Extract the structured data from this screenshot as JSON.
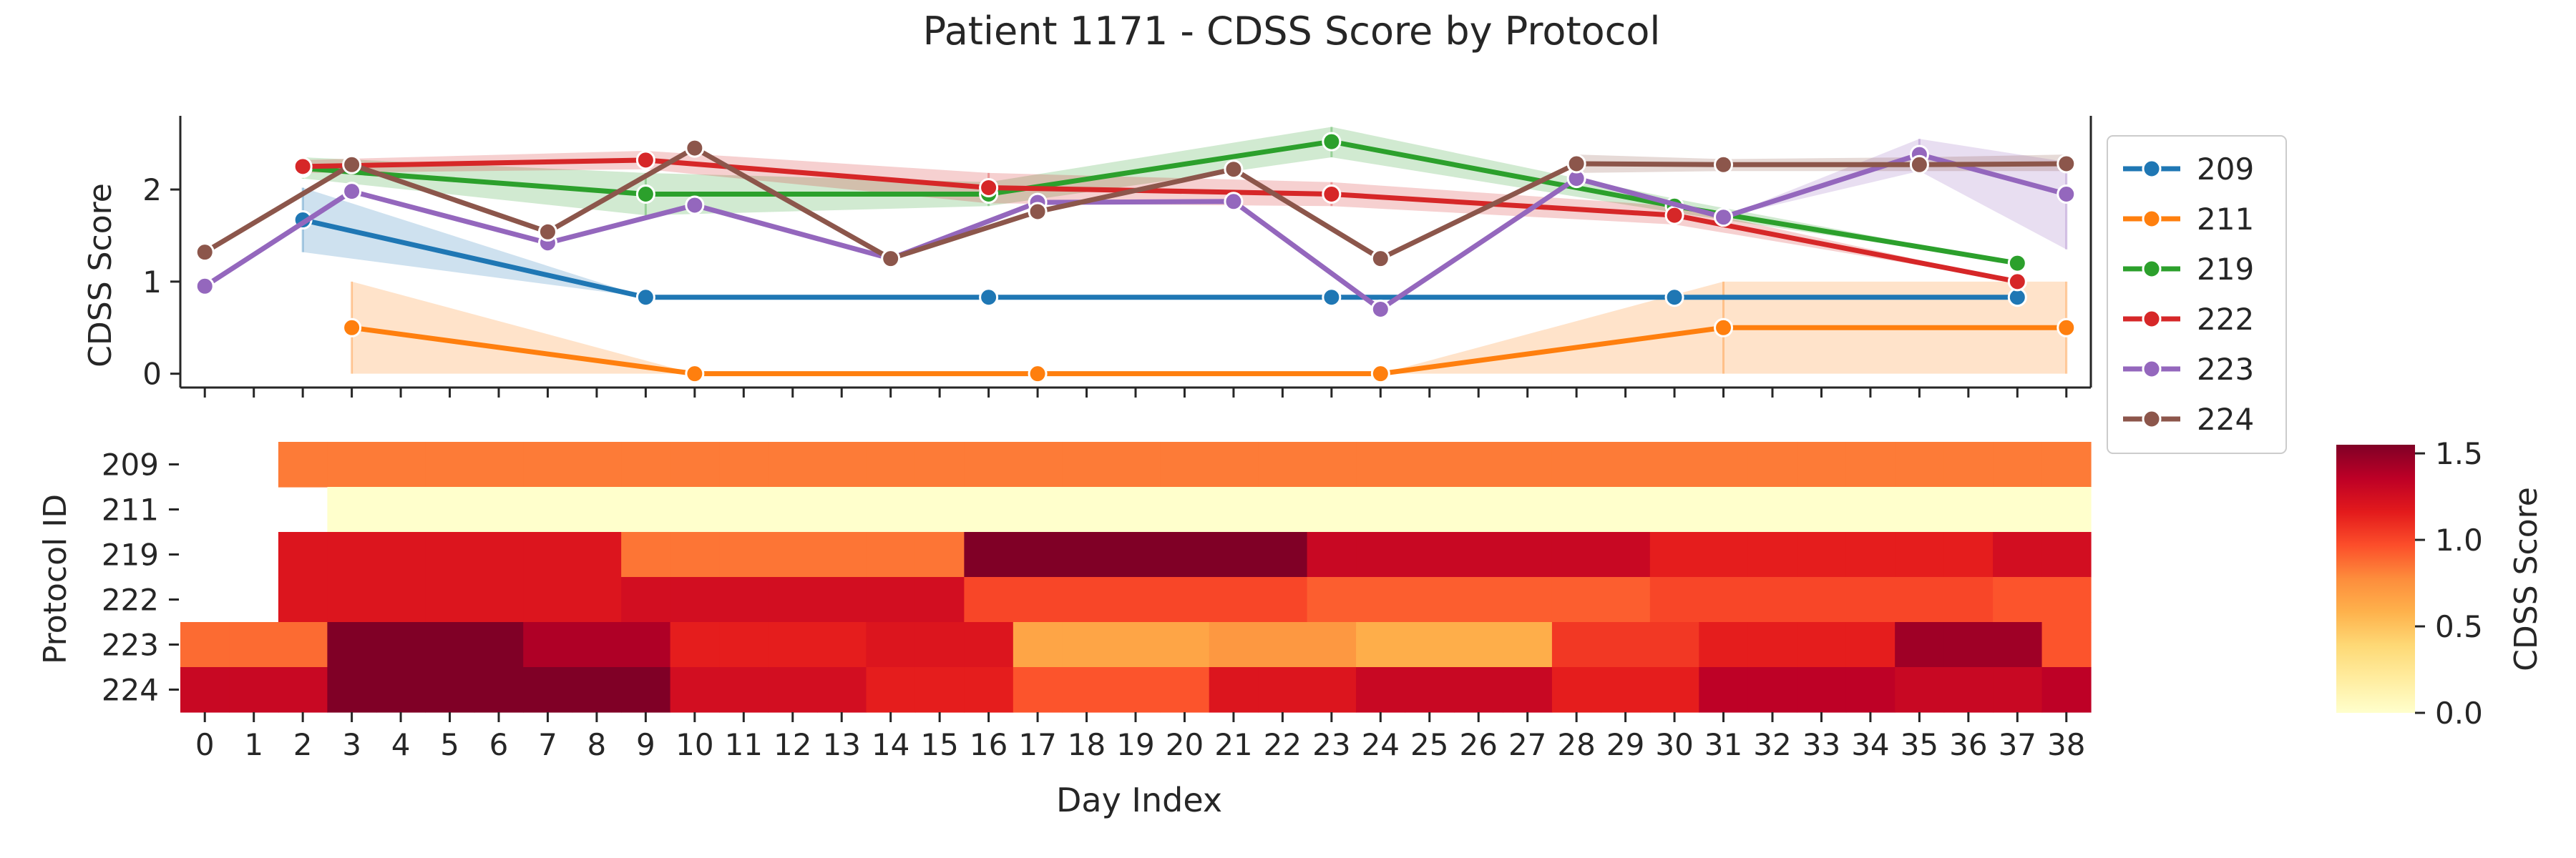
{
  "figure": {
    "title": "Patient 1171 - CDSS Score by Protocol"
  },
  "chart_data": [
    {
      "type": "line",
      "title": "Patient 1171 - CDSS Score by Protocol",
      "xlabel": "",
      "ylabel": "CDSS Score",
      "xlim": [
        -0.5,
        38.5
      ],
      "ylim": [
        -0.15,
        2.8
      ],
      "yticks": [
        0,
        1,
        2
      ],
      "legend_position": "right, outside plot",
      "grid": false,
      "series": [
        {
          "name": "209",
          "color": "#1f77b4",
          "points": [
            [
              2,
              1.67
            ],
            [
              9,
              0.83
            ],
            [
              16,
              0.83
            ],
            [
              23,
              0.83
            ],
            [
              30,
              0.83
            ],
            [
              37,
              0.83
            ]
          ],
          "band": [
            [
              2,
              1.32,
              2.02
            ],
            [
              9,
              0.83,
              0.83
            ],
            [
              16,
              0.83,
              0.83
            ],
            [
              23,
              0.83,
              0.83
            ],
            [
              30,
              0.83,
              0.83
            ],
            [
              37,
              0.83,
              0.83
            ]
          ]
        },
        {
          "name": "211",
          "color": "#ff7f0e",
          "points": [
            [
              3,
              0.5
            ],
            [
              10,
              0.0
            ],
            [
              17,
              0.0
            ],
            [
              24,
              0.0
            ],
            [
              31,
              0.5
            ],
            [
              38,
              0.5
            ]
          ],
          "band": [
            [
              3,
              0.0,
              1.0
            ],
            [
              10,
              0.0,
              0.0
            ],
            [
              17,
              0.0,
              0.0
            ],
            [
              24,
              0.0,
              0.0
            ],
            [
              31,
              0.0,
              1.0
            ],
            [
              38,
              0.0,
              1.0
            ]
          ]
        },
        {
          "name": "219",
          "color": "#2ca02c",
          "points": [
            [
              2,
              2.23
            ],
            [
              9,
              1.95
            ],
            [
              16,
              1.95
            ],
            [
              23,
              2.52
            ],
            [
              30,
              1.82
            ],
            [
              37,
              1.2
            ]
          ],
          "band": [
            [
              2,
              2.12,
              2.35
            ],
            [
              9,
              1.72,
              2.18
            ],
            [
              16,
              1.82,
              2.08
            ],
            [
              23,
              2.35,
              2.68
            ],
            [
              30,
              1.75,
              1.9
            ],
            [
              37,
              1.2,
              1.2
            ]
          ]
        },
        {
          "name": "222",
          "color": "#d62728",
          "points": [
            [
              2,
              2.25
            ],
            [
              9,
              2.32
            ],
            [
              16,
              2.02
            ],
            [
              23,
              1.95
            ],
            [
              30,
              1.72
            ],
            [
              37,
              1.0
            ]
          ],
          "band": [
            [
              2,
              2.18,
              2.32
            ],
            [
              9,
              2.22,
              2.42
            ],
            [
              16,
              1.85,
              2.18
            ],
            [
              23,
              1.82,
              2.08
            ],
            [
              30,
              1.62,
              1.82
            ],
            [
              37,
              1.0,
              1.0
            ]
          ]
        },
        {
          "name": "223",
          "color": "#9467bd",
          "points": [
            [
              0,
              0.95
            ],
            [
              3,
              1.98
            ],
            [
              7,
              1.42
            ],
            [
              10,
              1.83
            ],
            [
              14,
              1.25
            ],
            [
              17,
              1.86
            ],
            [
              21,
              1.87
            ],
            [
              24,
              0.7
            ],
            [
              28,
              2.12
            ],
            [
              31,
              1.7
            ],
            [
              35,
              2.38
            ],
            [
              38,
              1.95
            ]
          ],
          "band": [
            [
              31,
              1.7,
              1.7
            ],
            [
              35,
              2.2,
              2.55
            ],
            [
              38,
              1.35,
              2.3
            ]
          ]
        },
        {
          "name": "224",
          "color": "#8c564b",
          "points": [
            [
              0,
              1.32
            ],
            [
              3,
              2.27
            ],
            [
              7,
              1.54
            ],
            [
              10,
              2.45
            ],
            [
              14,
              1.25
            ],
            [
              17,
              1.76
            ],
            [
              21,
              2.22
            ],
            [
              24,
              1.25
            ],
            [
              28,
              2.28
            ],
            [
              31,
              2.27
            ],
            [
              35,
              2.27
            ],
            [
              38,
              2.28
            ]
          ],
          "band": [
            [
              28,
              2.18,
              2.38
            ],
            [
              31,
              2.2,
              2.33
            ],
            [
              35,
              2.2,
              2.35
            ],
            [
              38,
              2.2,
              2.38
            ]
          ]
        }
      ]
    },
    {
      "type": "heatmap",
      "xlabel": "Day Index",
      "ylabel": "Protocol ID",
      "x_categories": [
        "0",
        "1",
        "2",
        "3",
        "4",
        "5",
        "6",
        "7",
        "8",
        "9",
        "10",
        "11",
        "12",
        "13",
        "14",
        "15",
        "16",
        "17",
        "18",
        "19",
        "20",
        "21",
        "22",
        "23",
        "24",
        "25",
        "26",
        "27",
        "28",
        "29",
        "30",
        "31",
        "32",
        "33",
        "34",
        "35",
        "36",
        "37",
        "38"
      ],
      "y_categories": [
        "209",
        "211",
        "219",
        "222",
        "223",
        "224"
      ],
      "colormap": "YlOrRd",
      "colorbar": {
        "label": "CDSS Score",
        "ticks": [
          "0.0",
          "0.5",
          "1.0",
          "1.5"
        ],
        "range": [
          0.0,
          1.55
        ]
      },
      "rows": [
        {
          "protocol": "209",
          "values": [
            null,
            null,
            0.83,
            0.83,
            0.83,
            0.83,
            0.83,
            0.83,
            0.83,
            0.83,
            0.83,
            0.83,
            0.83,
            0.83,
            0.83,
            0.83,
            0.83,
            0.83,
            0.83,
            0.83,
            0.83,
            0.83,
            0.83,
            0.83,
            0.83,
            0.83,
            0.83,
            0.83,
            0.83,
            0.83,
            0.83,
            0.83,
            0.83,
            0.83,
            0.83,
            0.83,
            0.83,
            0.83,
            0.83
          ]
        },
        {
          "protocol": "211",
          "values": [
            null,
            null,
            null,
            0.0,
            0.0,
            0.0,
            0.0,
            0.0,
            0.0,
            0.0,
            0.0,
            0.0,
            0.0,
            0.0,
            0.0,
            0.0,
            0.0,
            0.0,
            0.0,
            0.0,
            0.0,
            0.0,
            0.0,
            0.0,
            0.0,
            0.0,
            0.0,
            0.0,
            0.0,
            0.0,
            0.0,
            0.0,
            0.0,
            0.0,
            0.0,
            0.0,
            0.0,
            0.0,
            0.0
          ]
        },
        {
          "protocol": "219",
          "values": [
            null,
            null,
            1.2,
            1.2,
            1.2,
            1.2,
            1.2,
            1.2,
            1.2,
            0.85,
            0.85,
            0.85,
            0.85,
            0.85,
            0.85,
            0.85,
            1.55,
            1.55,
            1.55,
            1.55,
            1.55,
            1.55,
            1.55,
            1.3,
            1.3,
            1.3,
            1.3,
            1.3,
            1.3,
            1.3,
            1.15,
            1.15,
            1.15,
            1.15,
            1.15,
            1.15,
            1.15,
            1.25,
            1.25
          ]
        },
        {
          "protocol": "222",
          "values": [
            null,
            null,
            1.2,
            1.2,
            1.2,
            1.2,
            1.2,
            1.2,
            1.2,
            1.25,
            1.25,
            1.25,
            1.25,
            1.25,
            1.25,
            1.25,
            1.0,
            1.0,
            1.0,
            1.0,
            1.0,
            1.0,
            1.0,
            0.92,
            0.92,
            0.92,
            0.92,
            0.92,
            0.92,
            0.92,
            1.0,
            1.0,
            1.0,
            1.0,
            1.0,
            1.0,
            1.0,
            0.95,
            0.95
          ]
        },
        {
          "protocol": "223",
          "values": [
            0.88,
            0.88,
            0.88,
            1.55,
            1.55,
            1.55,
            1.55,
            1.4,
            1.4,
            1.4,
            1.15,
            1.15,
            1.15,
            1.15,
            1.2,
            1.2,
            1.2,
            0.65,
            0.65,
            0.65,
            0.65,
            0.72,
            0.72,
            0.72,
            0.6,
            0.6,
            0.6,
            0.6,
            1.05,
            1.05,
            1.05,
            1.15,
            1.15,
            1.15,
            1.15,
            1.45,
            1.45,
            1.45,
            0.95
          ]
        },
        {
          "protocol": "224",
          "values": [
            1.3,
            1.3,
            1.3,
            1.55,
            1.55,
            1.55,
            1.55,
            1.58,
            1.58,
            1.58,
            1.25,
            1.25,
            1.25,
            1.25,
            1.15,
            1.15,
            1.15,
            0.95,
            0.95,
            0.95,
            0.95,
            1.2,
            1.2,
            1.2,
            1.3,
            1.3,
            1.3,
            1.3,
            1.15,
            1.15,
            1.15,
            1.35,
            1.35,
            1.35,
            1.35,
            1.3,
            1.3,
            1.3,
            1.35
          ]
        }
      ]
    }
  ]
}
